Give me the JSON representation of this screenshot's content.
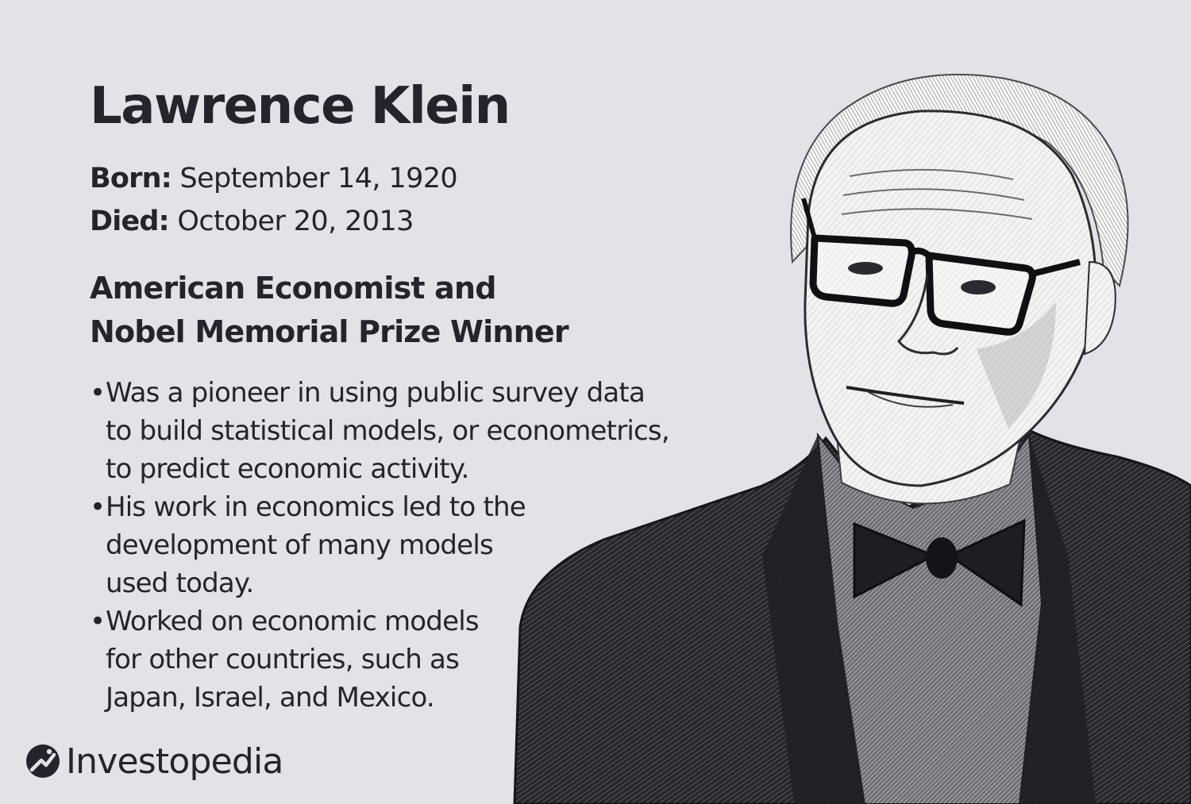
{
  "person": {
    "name": "Lawrence Klein",
    "born_label": "Born:",
    "born_value": "September 14, 1920",
    "died_label": "Died:",
    "died_value": "October 20, 2013"
  },
  "headline": {
    "lines": [
      "American Economist and",
      "Nobel Memorial Prize Winner"
    ]
  },
  "facts": [
    {
      "bullet": "•",
      "lines": [
        "Was a pioneer in using public survey data",
        "to build statistical models, or econometrics,",
        "to predict economic activity."
      ]
    },
    {
      "bullet": "•",
      "lines": [
        "His work in economics led to the",
        "development of many models",
        "used today."
      ]
    },
    {
      "bullet": "•",
      "lines": [
        "Worked on economic models",
        "for other countries, such as",
        "Japan, Israel, and Mexico."
      ]
    }
  ],
  "brand": {
    "name": "Investopedia",
    "icon": "investopedia-logo-icon"
  },
  "colors": {
    "background": "#e2e3e7",
    "text": "#24242c",
    "ink": "#1b1b20"
  }
}
